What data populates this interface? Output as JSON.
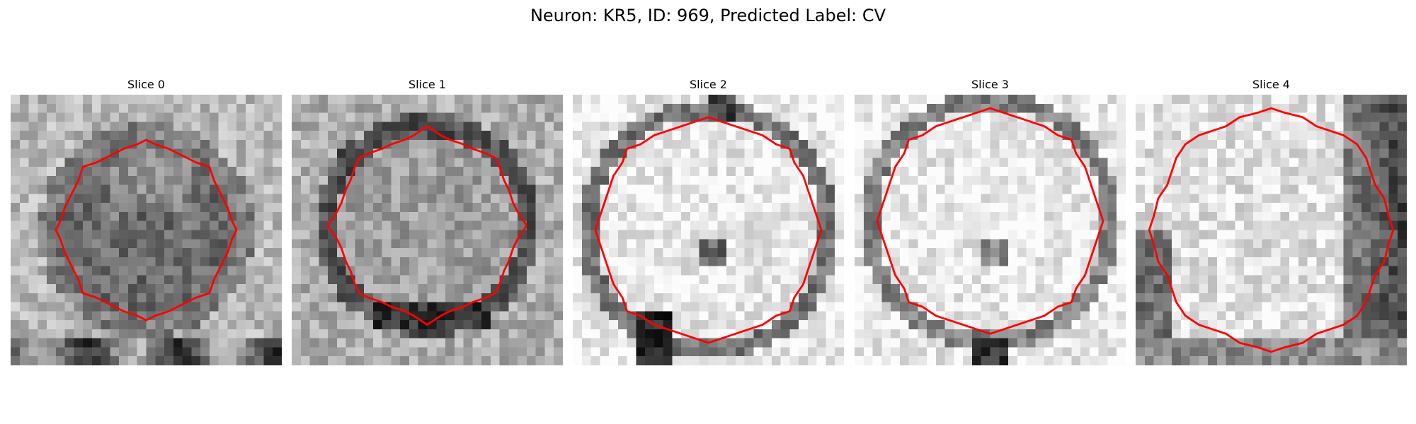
{
  "figure": {
    "title": "Neuron: KR5, ID: 969, Predicted Label: CV",
    "contour_color": "#ff0000"
  },
  "panels": [
    {
      "title": "Slice 0",
      "image": "grayscale-em-patch-dark-ring"
    },
    {
      "title": "Slice 1",
      "image": "grayscale-em-patch-textured-center"
    },
    {
      "title": "Slice 2",
      "image": "grayscale-em-patch-bright-center"
    },
    {
      "title": "Slice 3",
      "image": "grayscale-em-patch-bright-center"
    },
    {
      "title": "Slice 4",
      "image": "grayscale-em-patch-bright-left-dark-right"
    }
  ]
}
